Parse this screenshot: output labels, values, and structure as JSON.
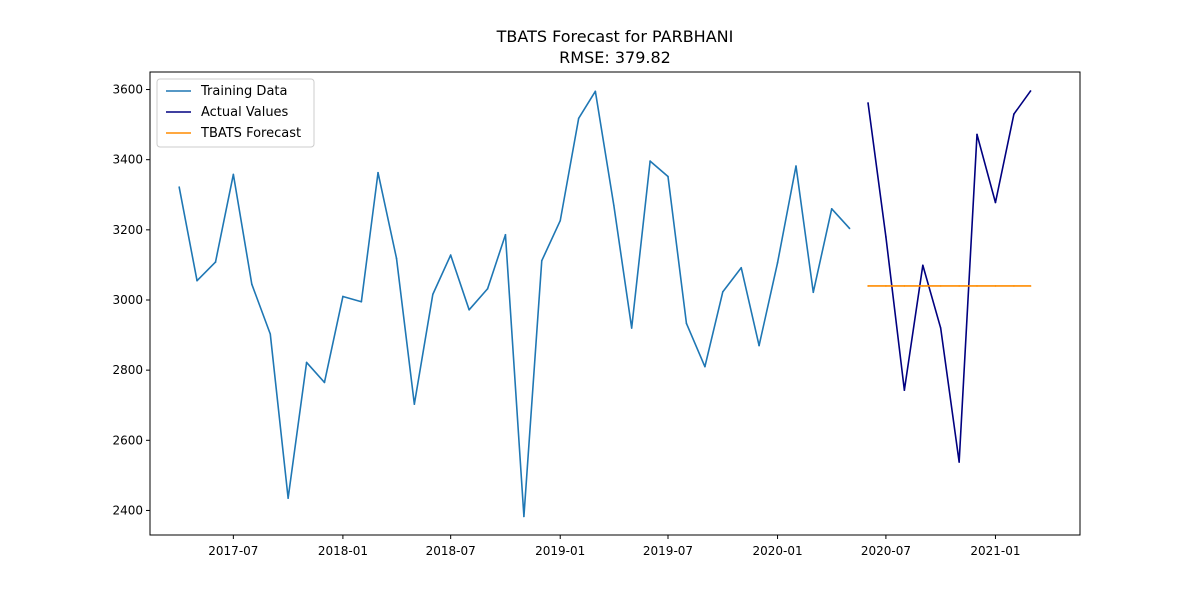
{
  "chart_data": {
    "type": "line",
    "title": "TBATS Forecast for PARBHANI",
    "subtitle": "RMSE: 379.82",
    "xlabel": "",
    "ylabel": "",
    "x_ticks": [
      "2017-07",
      "2018-01",
      "2018-07",
      "2019-01",
      "2019-07",
      "2020-01",
      "2020-07",
      "2021-01"
    ],
    "y_ticks": [
      2400,
      2600,
      2800,
      3000,
      3200,
      3400,
      3600
    ],
    "xlim": [
      "2017-02-11",
      "2021-05-23"
    ],
    "ylim": [
      2330,
      3650
    ],
    "grid": false,
    "legend_position": "top-left",
    "series": [
      {
        "name": "Training Data",
        "color": "#1f77b4",
        "x": [
          "2017-04",
          "2017-05",
          "2017-06",
          "2017-07",
          "2017-08",
          "2017-09",
          "2017-10",
          "2017-11",
          "2017-12",
          "2018-01",
          "2018-02",
          "2018-03",
          "2018-04",
          "2018-05",
          "2018-06",
          "2018-07",
          "2018-08",
          "2018-09",
          "2018-10",
          "2018-11",
          "2018-12",
          "2019-01",
          "2019-02",
          "2019-03",
          "2019-04",
          "2019-05",
          "2019-06",
          "2019-07",
          "2019-08",
          "2019-09",
          "2019-10",
          "2019-11",
          "2019-12",
          "2020-01",
          "2020-02",
          "2020-03",
          "2020-04",
          "2020-05"
        ],
        "values": [
          3322,
          3055,
          3108,
          3358,
          3045,
          2903,
          2435,
          2822,
          2765,
          3010,
          2995,
          3363,
          3119,
          2703,
          3016,
          3128,
          2972,
          3032,
          3186,
          2383,
          3112,
          3226,
          3518,
          3595,
          3270,
          2920,
          3396,
          3352,
          2933,
          2810,
          3023,
          3092,
          2870,
          3106,
          3382,
          3022,
          3260,
          3204
        ]
      },
      {
        "name": "Actual Values",
        "color": "#000080",
        "x": [
          "2020-06",
          "2020-07",
          "2020-08",
          "2020-09",
          "2020-10",
          "2020-11",
          "2020-12",
          "2021-01",
          "2021-02",
          "2021-03"
        ],
        "values": [
          3562,
          3180,
          2743,
          3099,
          2920,
          2538,
          3472,
          3278,
          3530,
          3596
        ]
      },
      {
        "name": "TBATS Forecast",
        "color": "#ff8c00",
        "x": [
          "2020-06",
          "2020-07",
          "2020-08",
          "2020-09",
          "2020-10",
          "2020-11",
          "2020-12",
          "2021-01",
          "2021-02",
          "2021-03"
        ],
        "values": [
          3040,
          3040,
          3040,
          3040,
          3040,
          3040,
          3040,
          3040,
          3040,
          3040
        ]
      }
    ]
  }
}
